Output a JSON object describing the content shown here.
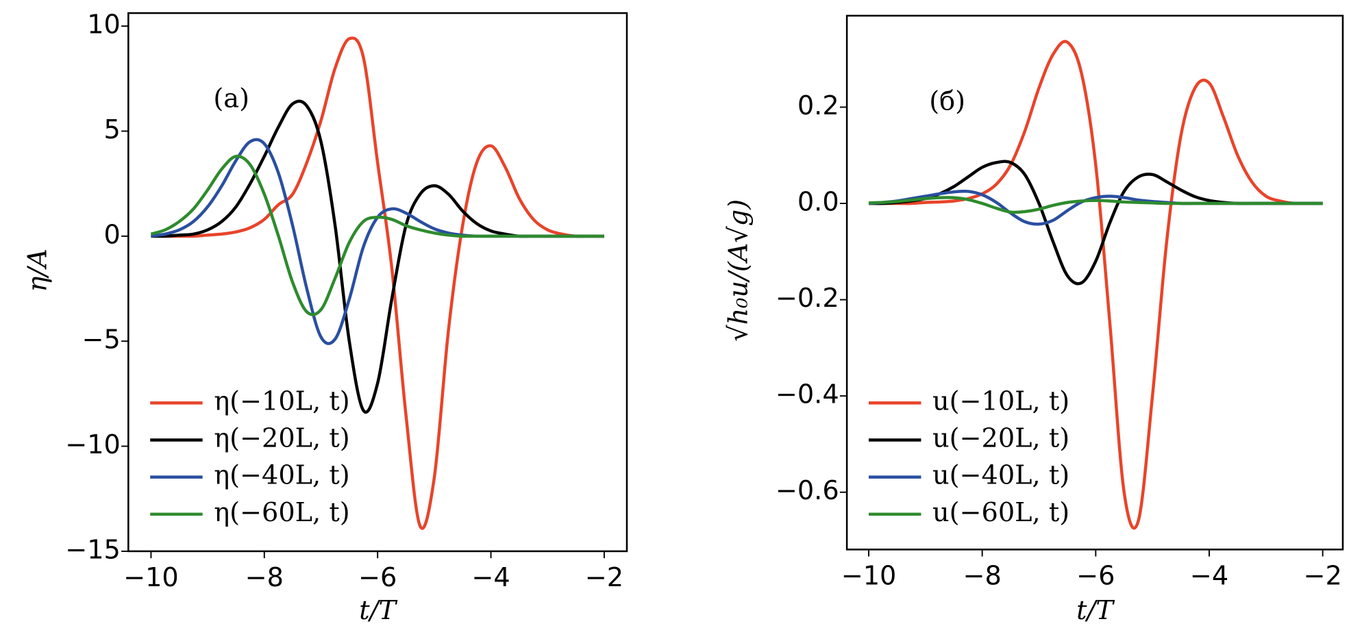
{
  "chart_data": [
    {
      "type": "line",
      "xlabel": "t/T",
      "ylabel": "η/A",
      "annotation": "(a)",
      "x": [
        -10,
        -9.75,
        -9.5,
        -9.25,
        -9,
        -8.75,
        -8.5,
        -8.25,
        -8,
        -7.75,
        -7.5,
        -7.25,
        -7,
        -6.75,
        -6.5,
        -6.25,
        -6,
        -5.75,
        -5.5,
        -5.25,
        -5,
        -4.75,
        -4.5,
        -4.25,
        -4,
        -3.75,
        -3.5,
        -3.25,
        -3,
        -2.75,
        -2.5,
        -2.25,
        -2
      ],
      "series": [
        {
          "name": "η(−10L, t)",
          "color": "#e8442a",
          "values": [
            0,
            0,
            0,
            0,
            0.05,
            0.1,
            0.2,
            0.4,
            0.8,
            1.5,
            2,
            3.5,
            5.5,
            8,
            9.4,
            8.5,
            3.5,
            -1.5,
            -8.5,
            -13.8,
            -11.5,
            -4.5,
            0.5,
            3.5,
            4.3,
            3.3,
            1.8,
            0.8,
            0.3,
            0.1,
            0,
            0,
            0
          ]
        },
        {
          "name": "η(−20L, t)",
          "color": "#000000",
          "values": [
            0,
            0,
            0.05,
            0.1,
            0.3,
            0.7,
            1.4,
            2.5,
            3.8,
            5.2,
            6.3,
            6.2,
            4.5,
            0.5,
            -5,
            -8.3,
            -7,
            -3,
            0.5,
            2,
            2.4,
            2,
            1.2,
            0.6,
            0.25,
            0.1,
            0,
            0,
            0,
            0,
            0,
            0,
            0
          ]
        },
        {
          "name": "η(−40L, t)",
          "color": "#2a4fa0",
          "values": [
            0,
            0.1,
            0.3,
            0.7,
            1.4,
            2.4,
            3.6,
            4.5,
            4.4,
            3,
            0.5,
            -2.5,
            -4.8,
            -4.9,
            -3,
            -0.5,
            0.9,
            1.3,
            1.1,
            0.7,
            0.35,
            0.15,
            0.05,
            0,
            0,
            0,
            0,
            0,
            0,
            0,
            0,
            0,
            0
          ]
        },
        {
          "name": "η(−60L, t)",
          "color": "#2e8b2e",
          "values": [
            0.1,
            0.3,
            0.7,
            1.3,
            2.2,
            3.2,
            3.8,
            3.4,
            2,
            0,
            -2.2,
            -3.6,
            -3.5,
            -2,
            -0.3,
            0.7,
            0.9,
            0.8,
            0.5,
            0.3,
            0.15,
            0.05,
            0,
            0,
            0,
            0,
            0,
            0,
            0,
            0,
            0,
            0,
            0
          ]
        }
      ],
      "xlim": [
        -10.4,
        -1.6
      ],
      "ylim": [
        -15,
        10.62
      ],
      "xticks": [
        {
          "value": -10,
          "label": "−10"
        },
        {
          "value": -8,
          "label": "−8"
        },
        {
          "value": -6,
          "label": "−6"
        },
        {
          "value": -4,
          "label": "−4"
        },
        {
          "value": -2,
          "label": "−2"
        }
      ],
      "yticks": [
        {
          "value": -15,
          "label": "−15"
        },
        {
          "value": -10,
          "label": "−10"
        },
        {
          "value": -5,
          "label": "−5"
        },
        0,
        5,
        10
      ],
      "legend": "lower left"
    },
    {
      "type": "line",
      "xlabel": "t/T",
      "ylabel": "√h₀u/(A√g)",
      "annotation": "(б)",
      "x": [
        -10,
        -9.75,
        -9.5,
        -9.25,
        -9,
        -8.75,
        -8.5,
        -8.25,
        -8,
        -7.75,
        -7.5,
        -7.25,
        -7,
        -6.75,
        -6.5,
        -6.25,
        -6,
        -5.75,
        -5.5,
        -5.25,
        -5,
        -4.75,
        -4.5,
        -4.25,
        -4,
        -3.75,
        -3.5,
        -3.25,
        -3,
        -2.75,
        -2.5,
        -2.25,
        -2
      ],
      "series": [
        {
          "name": "u(−10L, t)",
          "color": "#e8442a",
          "values": [
            0,
            0,
            0,
            0,
            0.002,
            0.003,
            0.005,
            0.01,
            0.02,
            0.04,
            0.08,
            0.15,
            0.24,
            0.31,
            0.335,
            0.27,
            0.08,
            -0.25,
            -0.6,
            -0.66,
            -0.4,
            -0.08,
            0.14,
            0.24,
            0.25,
            0.18,
            0.1,
            0.045,
            0.015,
            0.005,
            0,
            0,
            0
          ]
        },
        {
          "name": "u(−20L, t)",
          "color": "#000000",
          "values": [
            0,
            0,
            0.002,
            0.005,
            0.01,
            0.02,
            0.035,
            0.055,
            0.075,
            0.085,
            0.085,
            0.06,
            0,
            -0.08,
            -0.15,
            -0.165,
            -0.12,
            -0.04,
            0.025,
            0.055,
            0.06,
            0.045,
            0.028,
            0.014,
            0.006,
            0.002,
            0,
            0,
            0,
            0,
            0,
            0,
            0
          ]
        },
        {
          "name": "u(−40L, t)",
          "color": "#2a4fa0",
          "values": [
            0,
            0.002,
            0.005,
            0.01,
            0.015,
            0.02,
            0.024,
            0.025,
            0.018,
            0.002,
            -0.02,
            -0.038,
            -0.043,
            -0.035,
            -0.015,
            0.003,
            0.012,
            0.015,
            0.012,
            0.007,
            0.004,
            0.002,
            0,
            0,
            0,
            0,
            0,
            0,
            0,
            0,
            0,
            0,
            0
          ]
        },
        {
          "name": "u(−60L, t)",
          "color": "#2e8b2e",
          "values": [
            0.001,
            0.002,
            0.004,
            0.007,
            0.01,
            0.012,
            0.012,
            0.008,
            0,
            -0.01,
            -0.018,
            -0.017,
            -0.012,
            -0.004,
            0.002,
            0.005,
            0.006,
            0.005,
            0.003,
            0.002,
            0.001,
            0,
            0,
            0,
            0,
            0,
            0,
            0,
            0,
            0,
            0,
            0,
            0
          ]
        }
      ],
      "xlim": [
        -10.385,
        -1.646
      ],
      "ylim": [
        -0.719,
        0.39
      ],
      "xticks": [
        {
          "value": -10,
          "label": "−10"
        },
        {
          "value": -8,
          "label": "−8"
        },
        {
          "value": -6,
          "label": "−6"
        },
        {
          "value": -4,
          "label": "−4"
        },
        {
          "value": -2,
          "label": "−2"
        }
      ],
      "yticks": [
        {
          "value": -0.6,
          "label": "−0.6"
        },
        {
          "value": -0.4,
          "label": "−0.4"
        },
        {
          "value": -0.2,
          "label": "−0.2"
        },
        {
          "value": 0,
          "label": "0.0"
        },
        0.2
      ],
      "legend": "lower left"
    }
  ]
}
